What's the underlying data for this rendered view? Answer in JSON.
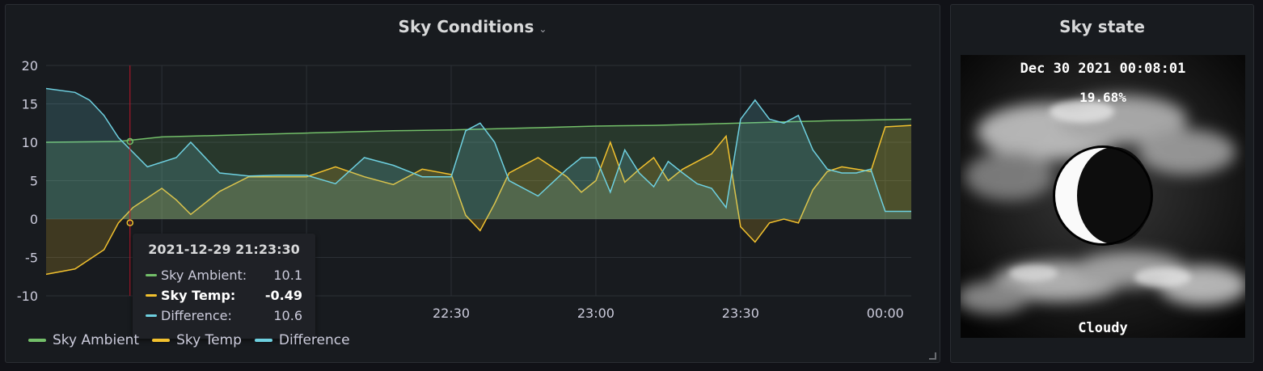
{
  "chart_panel": {
    "title": "Sky Conditions",
    "menu_icon": "chevron-down-icon"
  },
  "chart_data": {
    "type": "line",
    "title": "Sky Conditions",
    "xlabel": "",
    "ylabel": "",
    "ylim": [
      -10,
      20
    ],
    "yticks": [
      20,
      15,
      10,
      5,
      0,
      -5,
      -10
    ],
    "xticks": [
      "22:30",
      "23:00",
      "23:30",
      "00:00"
    ],
    "xticks_hours": [
      22.5,
      23.0,
      23.5,
      24.0
    ],
    "xlim_hours": [
      21.1,
      24.09
    ],
    "grid": true,
    "legend_position": "bottom-left",
    "series": [
      {
        "name": "Sky Ambient",
        "color": "#73bf69",
        "x": [
          21.1,
          21.35,
          21.5,
          21.8,
          22.0,
          22.3,
          22.5,
          22.7,
          22.8,
          23.0,
          23.2,
          23.4,
          23.6,
          23.8,
          24.09
        ],
        "values": [
          10.0,
          10.1,
          10.7,
          11.0,
          11.2,
          11.5,
          11.6,
          11.8,
          11.9,
          12.1,
          12.2,
          12.4,
          12.6,
          12.8,
          13.0
        ]
      },
      {
        "name": "Sky Temp",
        "color": "#f2c12e",
        "x": [
          21.1,
          21.2,
          21.3,
          21.35,
          21.4,
          21.5,
          21.55,
          21.6,
          21.7,
          21.8,
          21.9,
          22.0,
          22.1,
          22.2,
          22.3,
          22.4,
          22.5,
          22.55,
          22.6,
          22.65,
          22.7,
          22.8,
          22.9,
          22.95,
          23.0,
          23.05,
          23.1,
          23.15,
          23.2,
          23.25,
          23.3,
          23.35,
          23.4,
          23.45,
          23.5,
          23.55,
          23.6,
          23.65,
          23.7,
          23.75,
          23.8,
          23.85,
          23.9,
          23.95,
          24.0,
          24.09
        ],
        "values": [
          -7.2,
          -6.5,
          -4.0,
          -0.49,
          1.5,
          4.0,
          2.5,
          0.6,
          3.6,
          5.5,
          5.5,
          5.5,
          6.8,
          5.5,
          4.5,
          6.5,
          5.8,
          0.5,
          -1.5,
          2.0,
          6.0,
          8.0,
          5.5,
          3.5,
          5.0,
          10.0,
          4.8,
          6.5,
          8.0,
          5.0,
          6.5,
          7.5,
          8.5,
          10.8,
          -1.0,
          -3.0,
          -0.5,
          0.0,
          -0.5,
          3.8,
          6.2,
          6.8,
          6.5,
          6.2,
          12.0,
          12.2
        ]
      },
      {
        "name": "Difference",
        "color": "#6ed0e0",
        "x": [
          21.1,
          21.2,
          21.25,
          21.3,
          21.35,
          21.45,
          21.55,
          21.6,
          21.7,
          21.8,
          21.9,
          22.0,
          22.1,
          22.2,
          22.3,
          22.4,
          22.5,
          22.55,
          22.6,
          22.65,
          22.7,
          22.8,
          22.9,
          22.95,
          23.0,
          23.05,
          23.1,
          23.15,
          23.2,
          23.25,
          23.3,
          23.35,
          23.4,
          23.45,
          23.5,
          23.55,
          23.6,
          23.65,
          23.7,
          23.75,
          23.8,
          23.85,
          23.9,
          23.95,
          24.0,
          24.09
        ],
        "values": [
          17.0,
          16.5,
          15.5,
          13.5,
          10.6,
          6.8,
          8.0,
          10.0,
          6.0,
          5.6,
          5.7,
          5.7,
          4.6,
          8.0,
          7.0,
          5.5,
          5.5,
          11.5,
          12.5,
          10.0,
          5.0,
          3.0,
          6.5,
          8.0,
          8.0,
          3.5,
          9.0,
          6.0,
          4.2,
          7.5,
          6.0,
          4.6,
          4.0,
          1.5,
          13.0,
          15.5,
          13.0,
          12.5,
          13.5,
          9.0,
          6.5,
          6.0,
          6.0,
          6.5,
          1.0,
          1.0
        ]
      }
    ],
    "hover_x_hours": 21.39
  },
  "tooltip": {
    "time": "2021-12-29 21:23:30",
    "rows": [
      {
        "label": "Sky Ambient:",
        "value": "10.1",
        "color": "#73bf69"
      },
      {
        "label": "Sky Temp:",
        "value": "-0.49",
        "color": "#f2c12e"
      },
      {
        "label": "Difference:",
        "value": "10.6",
        "color": "#6ed0e0"
      }
    ]
  },
  "sky_panel": {
    "title": "Sky state",
    "image": {
      "timestamp": "Dec 30 2021 00:08:01",
      "percent": "19.68%",
      "condition": "Cloudy"
    }
  }
}
